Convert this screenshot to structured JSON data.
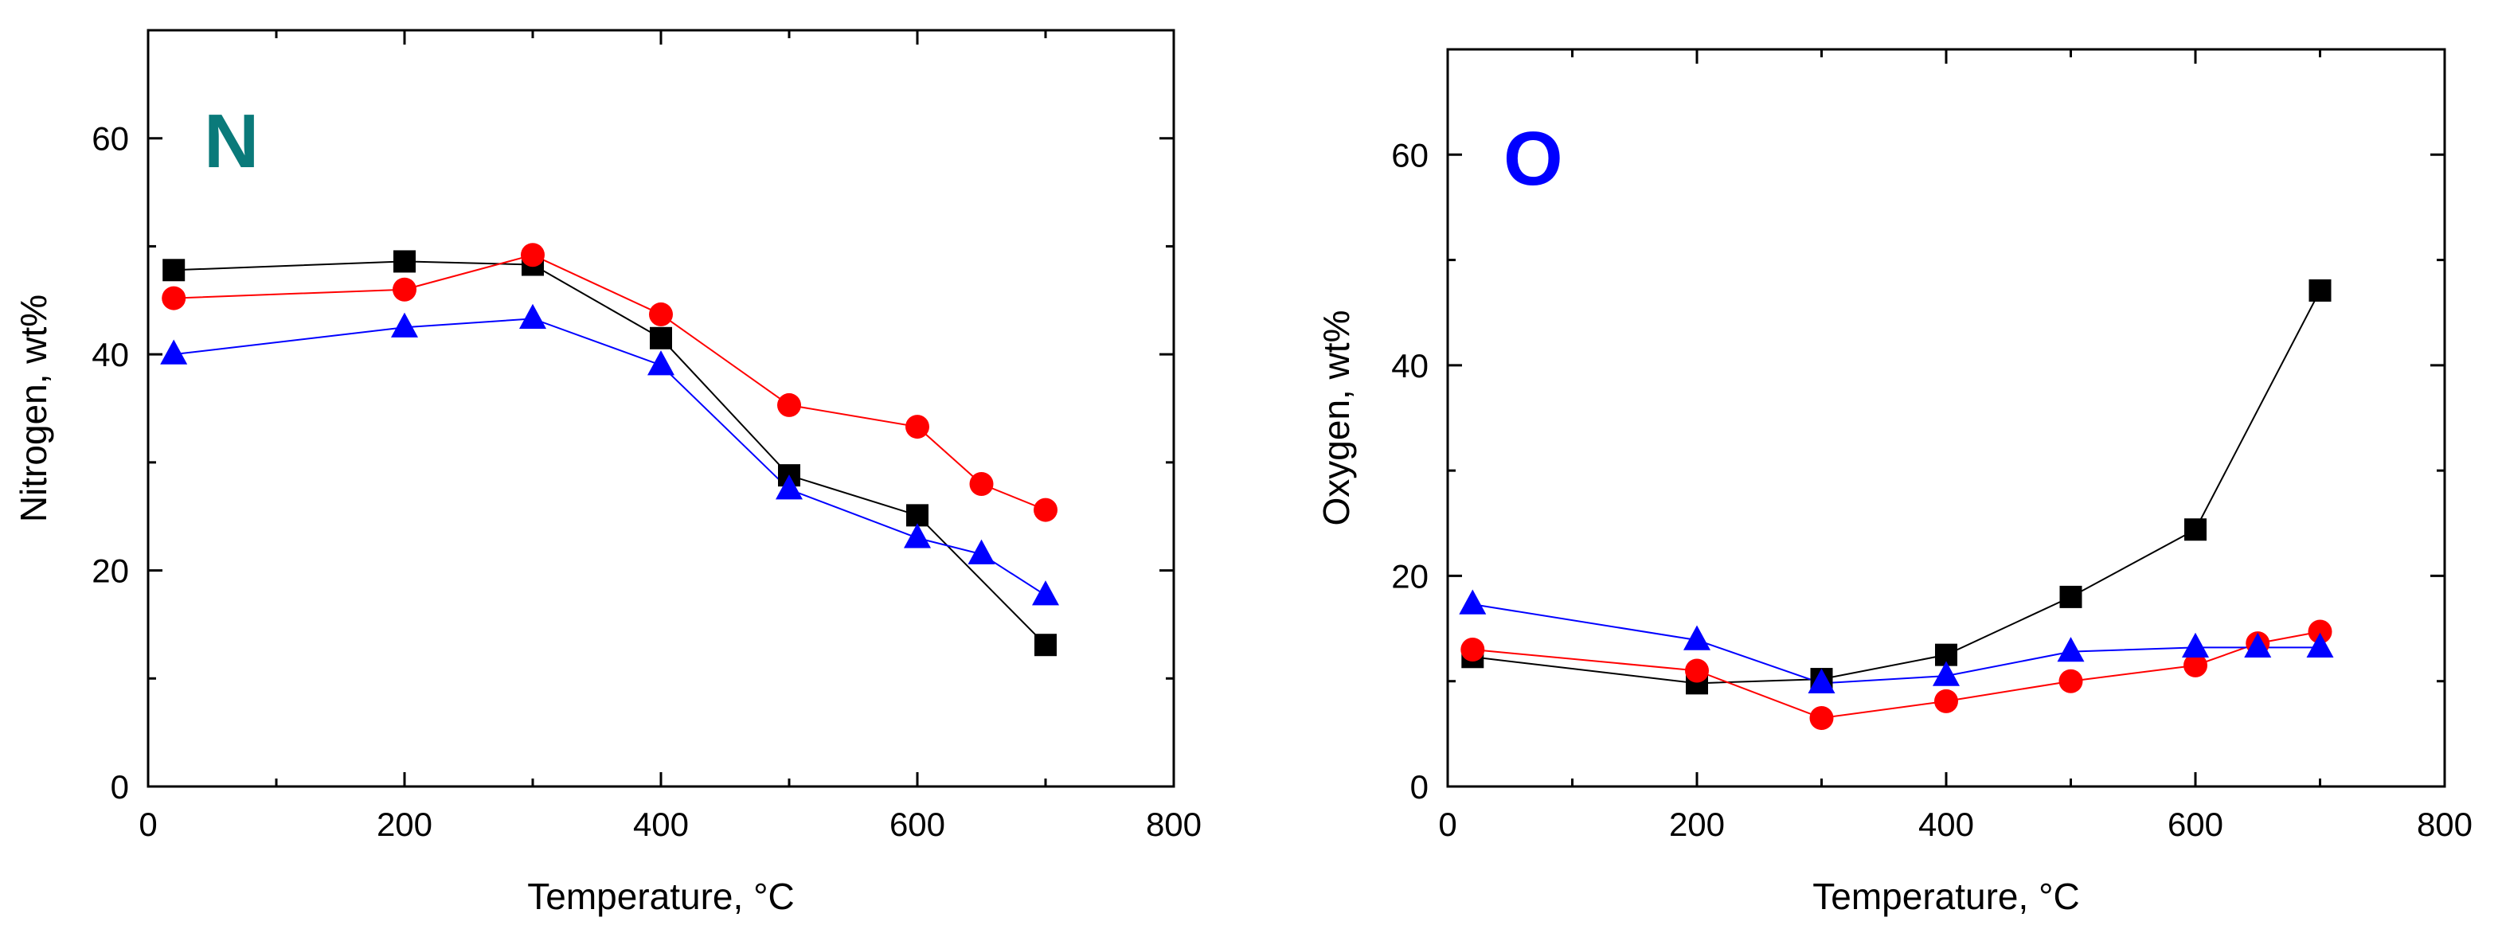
{
  "chart_data": [
    {
      "type": "line",
      "panel_label": "N",
      "panel_label_color": "#0a7a7a",
      "xlabel": "Temperature, °C",
      "ylabel": "Nitrogen, wt%",
      "xlim": [
        0,
        800
      ],
      "ylim": [
        0,
        70
      ],
      "xticks": [
        0,
        200,
        400,
        600,
        800
      ],
      "yticks": [
        0,
        20,
        40,
        60
      ],
      "xtick_labels": [
        "0",
        "200",
        "400",
        "600",
        "800"
      ],
      "ytick_labels": [
        "0",
        "20",
        "40",
        "60"
      ],
      "grid": false,
      "series": [
        {
          "name": "squares",
          "marker": "square",
          "color": "#000000",
          "x": [
            20,
            200,
            300,
            400,
            500,
            600,
            700
          ],
          "values": [
            47.8,
            48.6,
            48.3,
            41.5,
            28.8,
            25.1,
            13.1
          ]
        },
        {
          "name": "circles",
          "marker": "circle",
          "color": "#ff0000",
          "x": [
            20,
            200,
            300,
            400,
            500,
            600,
            650,
            700
          ],
          "values": [
            45.2,
            46.0,
            49.2,
            43.7,
            35.3,
            33.3,
            28.0,
            25.6
          ]
        },
        {
          "name": "triangles",
          "marker": "triangle",
          "color": "#0000ff",
          "x": [
            20,
            200,
            300,
            400,
            500,
            600,
            650,
            700
          ],
          "values": [
            40.0,
            42.5,
            43.3,
            39.0,
            27.5,
            23.0,
            21.5,
            17.7
          ]
        }
      ]
    },
    {
      "type": "line",
      "panel_label": "O",
      "panel_label_color": "#0000ff",
      "xlabel": "Temperature, °C",
      "ylabel": "Oxygen, wt%",
      "xlim": [
        0,
        800
      ],
      "ylim": [
        0,
        70
      ],
      "xticks": [
        0,
        200,
        400,
        600,
        800
      ],
      "yticks": [
        0,
        20,
        40,
        60
      ],
      "xtick_labels": [
        "0",
        "200",
        "400",
        "600",
        "800"
      ],
      "ytick_labels": [
        "0",
        "20",
        "40",
        "60"
      ],
      "grid": false,
      "series": [
        {
          "name": "squares",
          "marker": "square",
          "color": "#000000",
          "x": [
            20,
            200,
            300,
            400,
            500,
            600,
            700
          ],
          "values": [
            12.3,
            9.8,
            10.2,
            12.5,
            18.0,
            24.4,
            47.1
          ]
        },
        {
          "name": "circles",
          "marker": "circle",
          "color": "#ff0000",
          "x": [
            20,
            200,
            300,
            400,
            500,
            600,
            650,
            700
          ],
          "values": [
            13.0,
            11.0,
            6.5,
            8.1,
            10.0,
            11.5,
            13.6,
            14.7
          ]
        },
        {
          "name": "triangles",
          "marker": "triangle",
          "color": "#0000ff",
          "x": [
            20,
            200,
            300,
            400,
            500,
            600,
            650,
            700
          ],
          "values": [
            17.3,
            13.9,
            9.8,
            10.5,
            12.8,
            13.2,
            13.2,
            13.2
          ]
        }
      ]
    }
  ]
}
